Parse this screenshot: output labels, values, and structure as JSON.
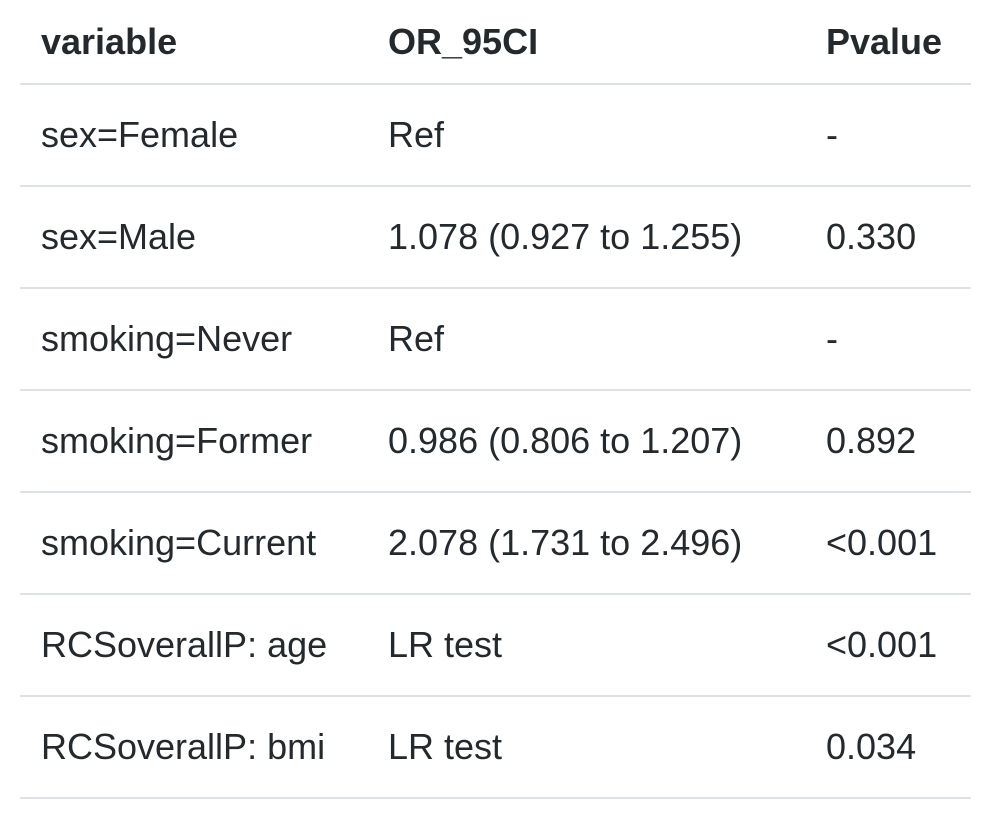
{
  "table": {
    "columns": [
      "variable",
      "OR_95CI",
      "Pvalue"
    ],
    "rows": [
      [
        "sex=Female",
        "Ref",
        "-"
      ],
      [
        "sex=Male",
        "1.078 (0.927 to 1.255)",
        "0.330"
      ],
      [
        "smoking=Never",
        "Ref",
        "-"
      ],
      [
        "smoking=Former",
        "0.986 (0.806 to 1.207)",
        "0.892"
      ],
      [
        "smoking=Current",
        "2.078 (1.731 to 2.496)",
        "<0.001"
      ],
      [
        "RCSoverallP: age",
        "LR test",
        "<0.001"
      ],
      [
        "RCSoverallP: bmi",
        "LR test",
        "0.034"
      ]
    ]
  }
}
